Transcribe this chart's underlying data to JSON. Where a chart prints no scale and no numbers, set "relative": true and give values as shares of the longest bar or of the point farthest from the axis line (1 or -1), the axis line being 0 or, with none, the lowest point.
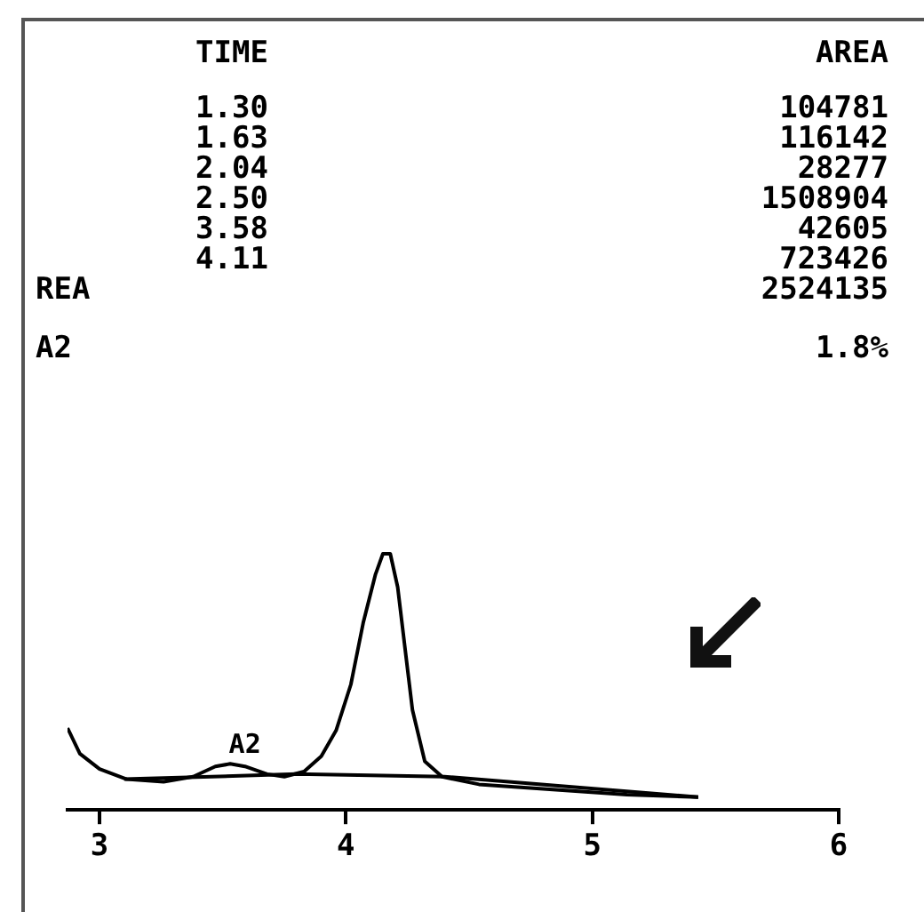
{
  "chart_data": {
    "type": "line",
    "relative": true,
    "xlim": [
      2.87,
      6
    ],
    "xticks": [
      3,
      4,
      5,
      6
    ],
    "grid": false,
    "legend": false,
    "marker": "none",
    "line_style": "solid",
    "annotations": [
      "TIME",
      "AREA",
      "1.30",
      "104781",
      "1.63",
      "116142",
      "2.04",
      "28277",
      "2.50",
      "1508904",
      "3.58",
      "42605",
      "4.11",
      "723426",
      "REA",
      "2524135",
      "A2",
      "1.8%",
      {
        "text": "A2",
        "x": 3.59,
        "y": 0.17
      }
    ],
    "series": [
      {
        "color": "#000000",
        "x": [
          2.87,
          2.92,
          3.0,
          3.11,
          3.26,
          3.38,
          3.47,
          3.53,
          3.59,
          3.68,
          3.75,
          3.83,
          3.9,
          3.96,
          4.02,
          4.07,
          4.12,
          4.15,
          4.18,
          4.21,
          4.24,
          4.27,
          4.32,
          4.39,
          4.54,
          4.84,
          5.14,
          5.43
        ],
        "values": [
          0.32,
          0.22,
          0.16,
          0.12,
          0.11,
          0.13,
          0.17,
          0.18,
          0.17,
          0.14,
          0.13,
          0.15,
          0.21,
          0.31,
          0.49,
          0.73,
          0.92,
          1,
          1,
          0.87,
          0.63,
          0.39,
          0.19,
          0.13,
          0.1,
          0.08,
          0.06,
          0.05
        ]
      },
      {
        "color": "#000000",
        "x": [
          3.1,
          3.8,
          4.4,
          5.43
        ],
        "values": [
          0.12,
          0.14,
          0.13,
          0.05
        ]
      }
    ]
  }
}
